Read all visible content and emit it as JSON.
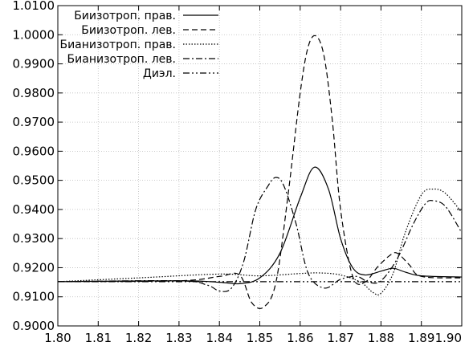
{
  "chart_data": {
    "type": "line",
    "title": "",
    "xlabel": "",
    "ylabel": "",
    "xlim": [
      1.8,
      1.9
    ],
    "ylim": [
      0.9,
      1.01
    ],
    "xticks": [
      "1.80",
      "1.81",
      "1.82",
      "1.83",
      "1.84",
      "1.85",
      "1.86",
      "1.87",
      "1.88",
      "1.89",
      "1.90"
    ],
    "yticks": [
      "0.9000",
      "0.9100",
      "0.9200",
      "0.9300",
      "0.9400",
      "0.9500",
      "0.9600",
      "0.9700",
      "0.9800",
      "0.9900",
      "1.0000",
      "1.0100"
    ],
    "grid": true,
    "legend_position": "top-right",
    "series": [
      {
        "name": "Биизотроп. прав.",
        "dash": "solid",
        "x": [
          1.8,
          1.83,
          1.84,
          1.845,
          1.85,
          1.855,
          1.86,
          1.8635,
          1.867,
          1.87,
          1.873,
          1.876,
          1.88,
          1.883,
          1.886,
          1.89,
          1.9
        ],
        "y": [
          0.9152,
          0.9155,
          0.915,
          0.9145,
          0.9165,
          0.925,
          0.944,
          0.9545,
          0.947,
          0.93,
          0.92,
          0.9175,
          0.9188,
          0.9198,
          0.9185,
          0.9172,
          0.9168
        ]
      },
      {
        "name": "Биизотроп. лев.",
        "dash": "dash",
        "x": [
          1.8,
          1.83,
          1.84,
          1.845,
          1.848,
          1.851,
          1.854,
          1.857,
          1.86,
          1.862,
          1.864,
          1.866,
          1.868,
          1.87,
          1.873,
          1.876,
          1.879,
          1.882,
          1.884,
          1.887,
          1.89,
          1.9
        ],
        "y": [
          0.9152,
          0.9155,
          0.917,
          0.9175,
          0.908,
          0.9065,
          0.915,
          0.945,
          0.98,
          0.996,
          0.9995,
          0.992,
          0.97,
          0.94,
          0.917,
          0.915,
          0.92,
          0.924,
          0.925,
          0.921,
          0.917,
          0.9165
        ]
      },
      {
        "name": "Бианизотроп. прав.",
        "dash": "dot",
        "x": [
          1.8,
          1.82,
          1.84,
          1.85,
          1.86,
          1.865,
          1.87,
          1.875,
          1.878,
          1.88,
          1.883,
          1.886,
          1.89,
          1.893,
          1.896,
          1.9
        ],
        "y": [
          0.9152,
          0.9165,
          0.9178,
          0.9172,
          0.918,
          0.9182,
          0.9175,
          0.915,
          0.9115,
          0.9112,
          0.918,
          0.932,
          0.945,
          0.947,
          0.9455,
          0.939
        ]
      },
      {
        "name": "Бианизотроп. лев.",
        "dash": "dashdot",
        "x": [
          1.8,
          1.83,
          1.837,
          1.84,
          1.843,
          1.846,
          1.849,
          1.852,
          1.854,
          1.856,
          1.859,
          1.862,
          1.866,
          1.87,
          1.874,
          1.877,
          1.88,
          1.884,
          1.888,
          1.891,
          1.893,
          1.896,
          1.9
        ],
        "y": [
          0.9152,
          0.9155,
          0.914,
          0.912,
          0.913,
          0.922,
          0.94,
          0.948,
          0.951,
          0.948,
          0.935,
          0.918,
          0.913,
          0.916,
          0.917,
          0.915,
          0.9155,
          0.923,
          0.935,
          0.942,
          0.943,
          0.941,
          0.932
        ]
      },
      {
        "name": "Диэл.",
        "dash": "dashdotdot",
        "x": [
          1.8,
          1.9
        ],
        "y": [
          0.9152,
          0.9152
        ]
      }
    ]
  }
}
